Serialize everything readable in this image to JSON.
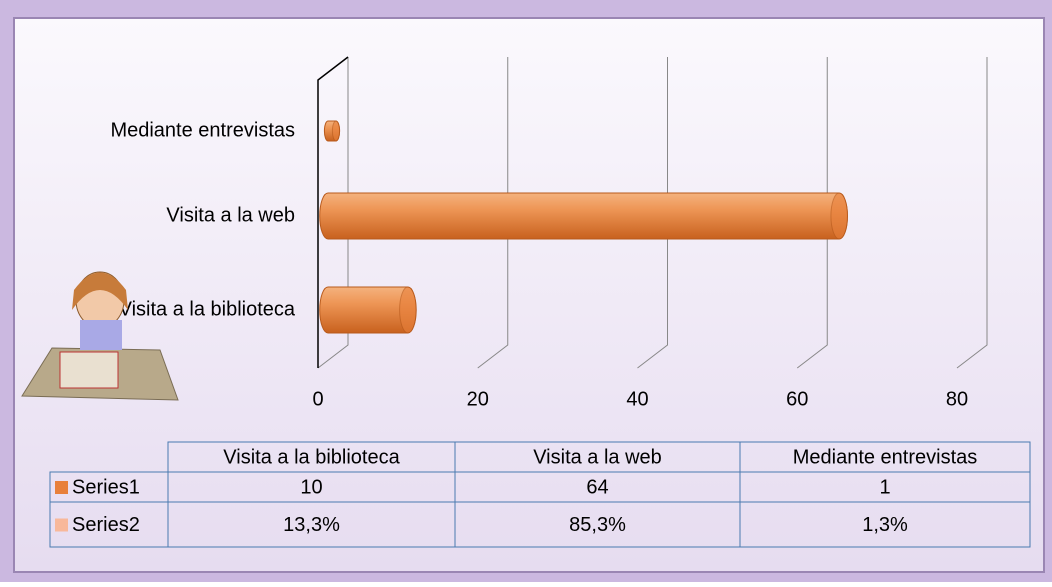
{
  "chart_data": {
    "type": "bar",
    "orientation": "horizontal",
    "categories": [
      "Visita a la biblioteca",
      "Visita a la web",
      "Mediante entrevistas"
    ],
    "series": [
      {
        "name": "Series1",
        "color": "#e8803b",
        "values": [
          10,
          64,
          1
        ]
      },
      {
        "name": "Series2",
        "color": "#f8b89a",
        "values": [
          13.3,
          85.3,
          1.3
        ],
        "value_labels": [
          "13,3%",
          "85,3%",
          "1,3%"
        ]
      }
    ],
    "xlim": [
      0,
      80
    ],
    "xticks": [
      0,
      20,
      40,
      60,
      80
    ],
    "grid": true,
    "data_table": true
  }
}
